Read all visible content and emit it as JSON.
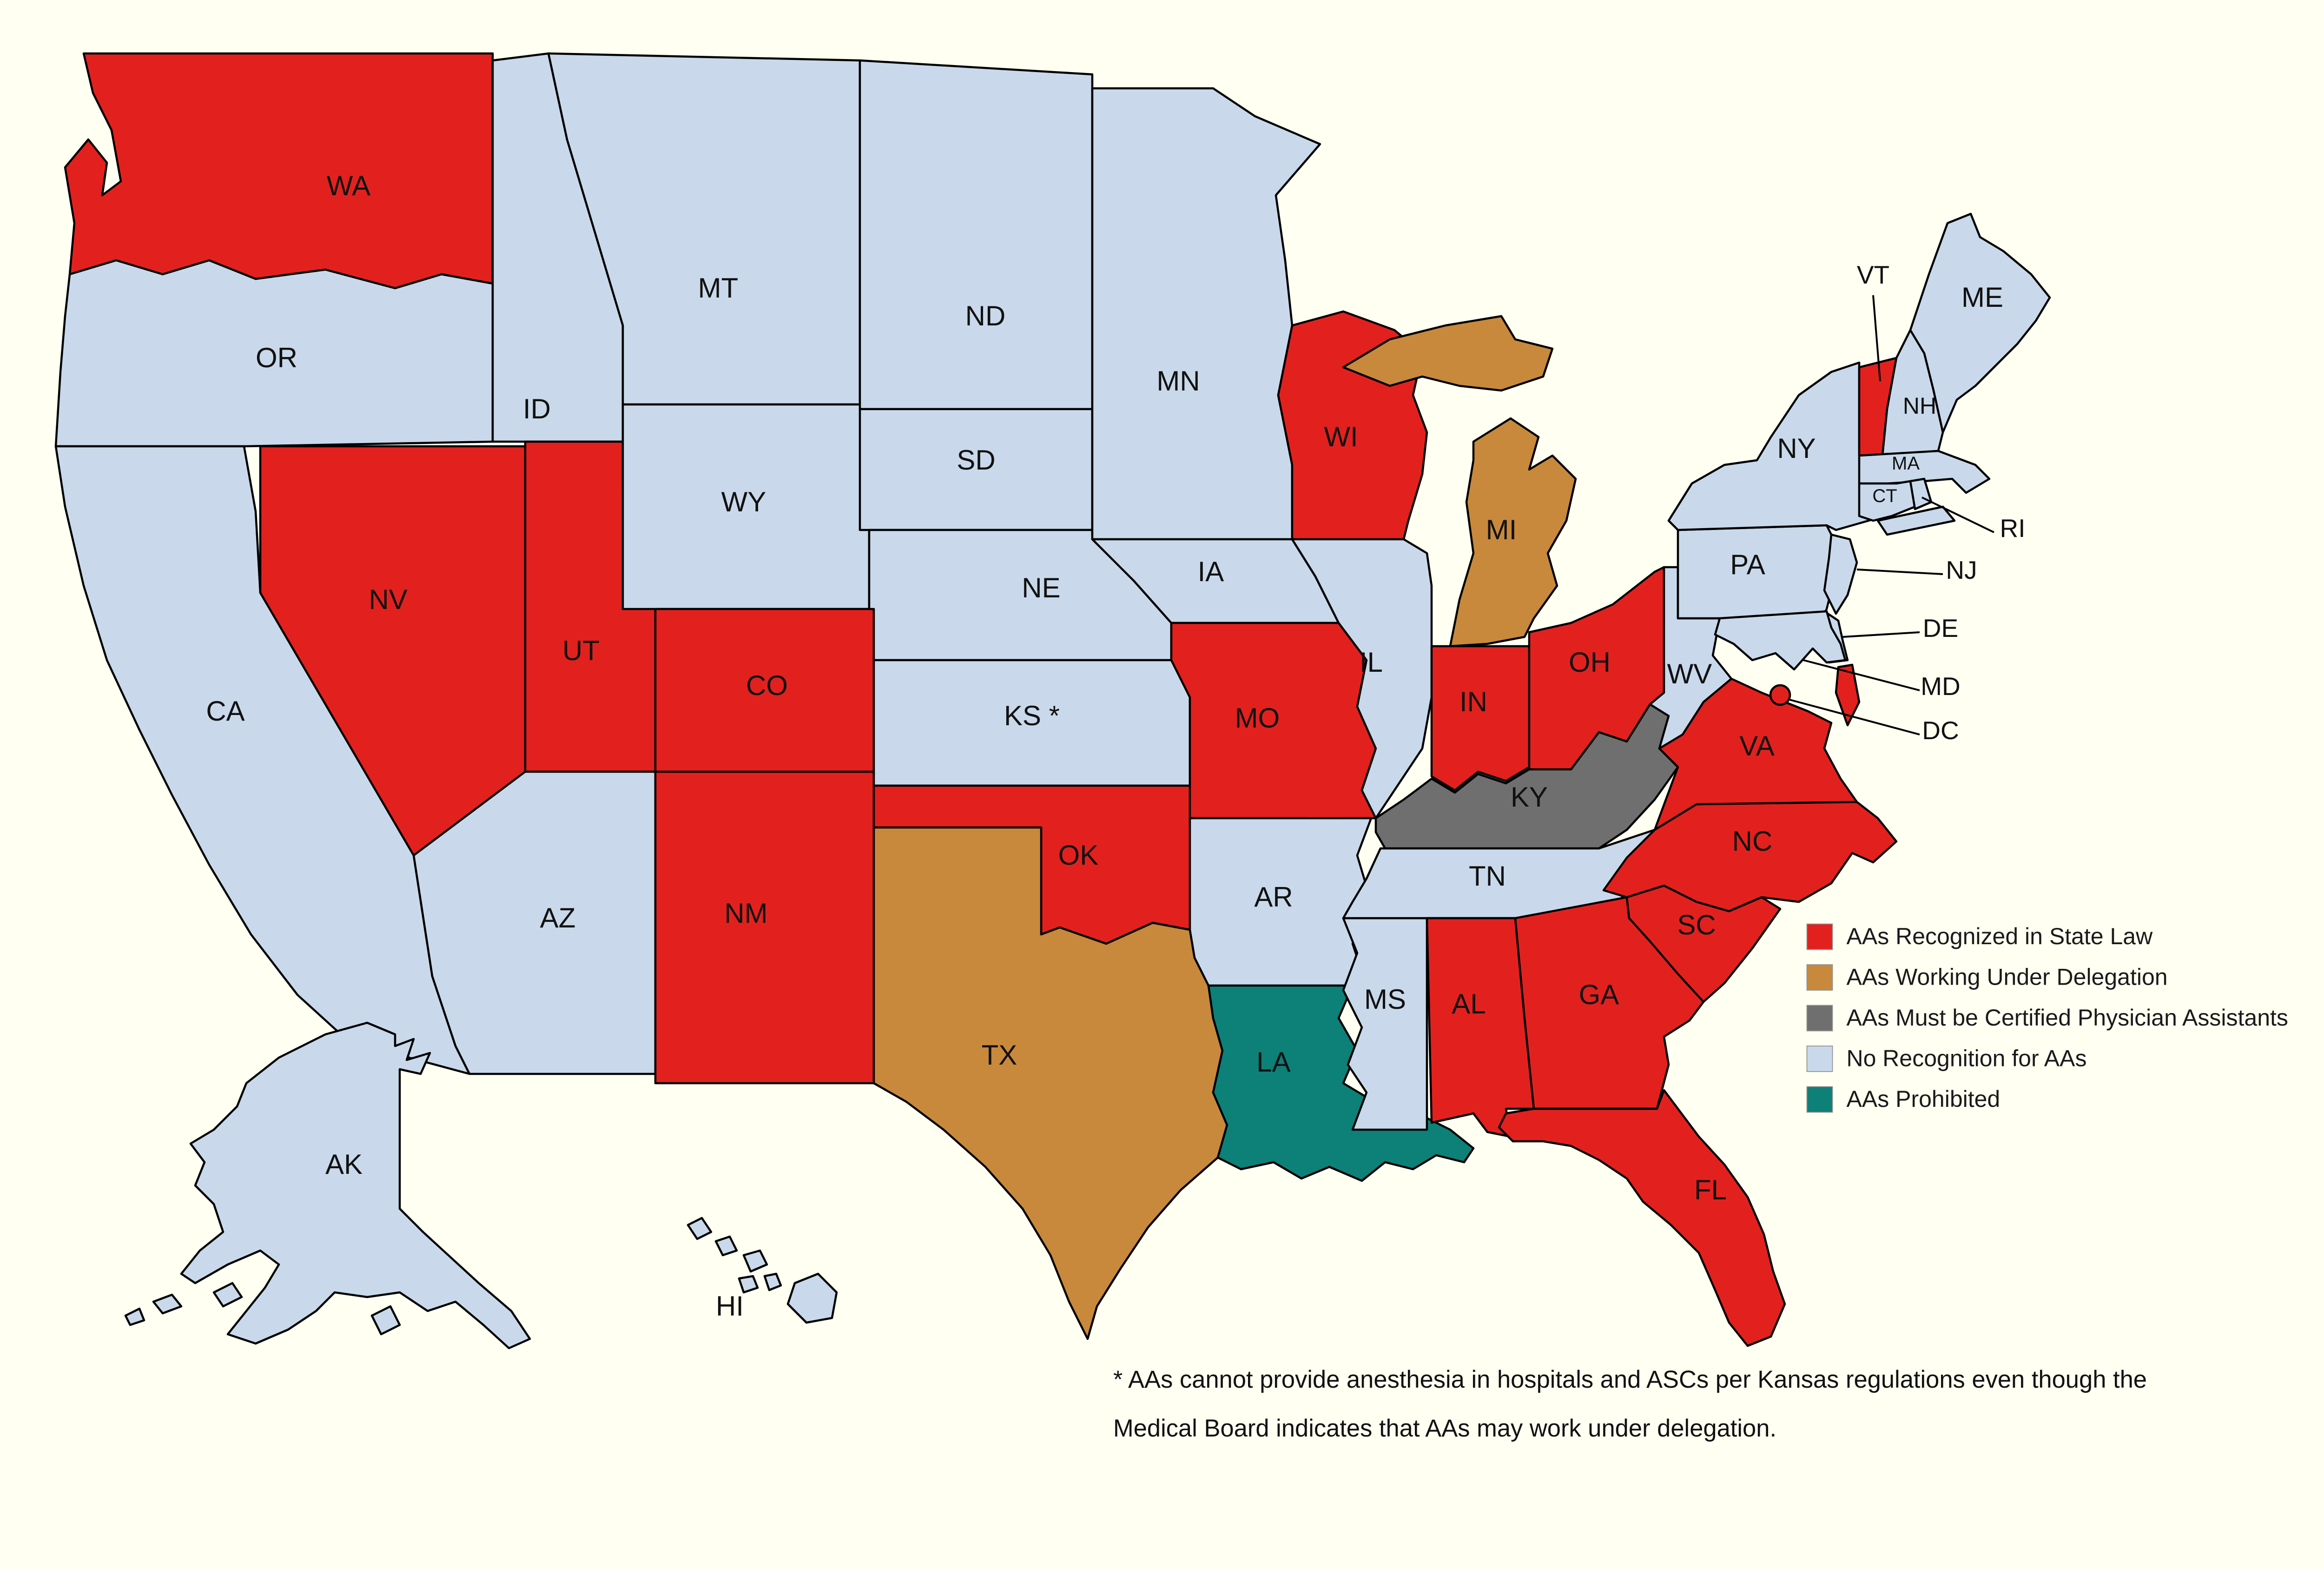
{
  "map": {
    "background_color": "#FFFFF2",
    "border_color": "#000000",
    "categories": {
      "recognized": {
        "label": "AAs Recognized in State Law",
        "color": "#E2211F"
      },
      "delegation": {
        "label": "AAs Working Under Delegation",
        "color": "#C8893C"
      },
      "certified_pa": {
        "label": "AAs Must be Certified Physician Assistants",
        "color": "#6F6F6F"
      },
      "none": {
        "label": "No Recognition for AAs",
        "color": "#C9D9EB"
      },
      "prohibited": {
        "label": "AAs Prohibited",
        "color": "#0D8078"
      }
    },
    "states": [
      {
        "abbr": "WA",
        "category": "recognized"
      },
      {
        "abbr": "OR",
        "category": "none"
      },
      {
        "abbr": "CA",
        "category": "none"
      },
      {
        "abbr": "ID",
        "category": "none"
      },
      {
        "abbr": "NV",
        "category": "recognized"
      },
      {
        "abbr": "UT",
        "category": "recognized"
      },
      {
        "abbr": "AZ",
        "category": "none"
      },
      {
        "abbr": "MT",
        "category": "none"
      },
      {
        "abbr": "WY",
        "category": "none"
      },
      {
        "abbr": "CO",
        "category": "recognized"
      },
      {
        "abbr": "NM",
        "category": "recognized"
      },
      {
        "abbr": "ND",
        "category": "none"
      },
      {
        "abbr": "SD",
        "category": "none"
      },
      {
        "abbr": "NE",
        "category": "none"
      },
      {
        "abbr": "KS",
        "category": "none",
        "label": "KS *"
      },
      {
        "abbr": "OK",
        "category": "recognized"
      },
      {
        "abbr": "TX",
        "category": "delegation"
      },
      {
        "abbr": "MN",
        "category": "none"
      },
      {
        "abbr": "IA",
        "category": "none"
      },
      {
        "abbr": "MO",
        "category": "recognized"
      },
      {
        "abbr": "AR",
        "category": "none"
      },
      {
        "abbr": "LA",
        "category": "prohibited"
      },
      {
        "abbr": "WI",
        "category": "recognized"
      },
      {
        "abbr": "IL",
        "category": "none"
      },
      {
        "abbr": "MS",
        "category": "none"
      },
      {
        "abbr": "MI",
        "category": "delegation"
      },
      {
        "abbr": "IN",
        "category": "recognized"
      },
      {
        "abbr": "OH",
        "category": "recognized"
      },
      {
        "abbr": "KY",
        "category": "certified_pa"
      },
      {
        "abbr": "TN",
        "category": "none"
      },
      {
        "abbr": "AL",
        "category": "recognized"
      },
      {
        "abbr": "GA",
        "category": "recognized"
      },
      {
        "abbr": "FL",
        "category": "recognized"
      },
      {
        "abbr": "SC",
        "category": "recognized"
      },
      {
        "abbr": "NC",
        "category": "recognized"
      },
      {
        "abbr": "VA",
        "category": "recognized"
      },
      {
        "abbr": "WV",
        "category": "none"
      },
      {
        "abbr": "PA",
        "category": "none"
      },
      {
        "abbr": "NY",
        "category": "none"
      },
      {
        "abbr": "NJ",
        "category": "none"
      },
      {
        "abbr": "DE",
        "category": "none"
      },
      {
        "abbr": "MD",
        "category": "none"
      },
      {
        "abbr": "DC",
        "category": "recognized"
      },
      {
        "abbr": "VT",
        "category": "recognized"
      },
      {
        "abbr": "NH",
        "category": "none"
      },
      {
        "abbr": "MA",
        "category": "none"
      },
      {
        "abbr": "CT",
        "category": "none"
      },
      {
        "abbr": "RI",
        "category": "none"
      },
      {
        "abbr": "ME",
        "category": "none"
      },
      {
        "abbr": "AK",
        "category": "none"
      },
      {
        "abbr": "HI",
        "category": "none"
      }
    ]
  },
  "legend": {
    "order": [
      "recognized",
      "delegation",
      "certified_pa",
      "none",
      "prohibited"
    ]
  },
  "footnote": {
    "line1": "* AAs cannot provide anesthesia in hospitals and ASCs per Kansas regulations even though the",
    "line2": "Medical Board indicates that AAs may work under delegation."
  }
}
